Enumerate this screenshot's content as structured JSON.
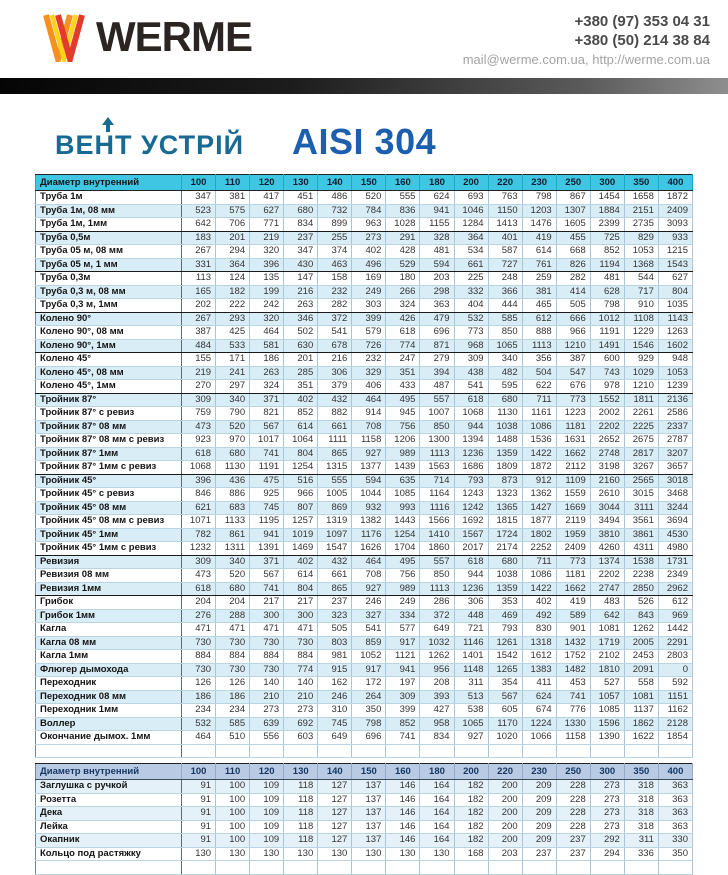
{
  "header": {
    "logo_text": "WERME",
    "phone1": "+380 (97) 353 04 31",
    "phone2": "+380 (50) 214 38 84",
    "contacts": "mail@werme.com.ua, http://werme.com.ua",
    "brand": "ВЕНТ УСТРІЙ",
    "material": "AISI 304",
    "colors": {
      "table1_header_bg": "#3fc6e3",
      "table1_stripe": "#d9edf7",
      "table2_header_bg": "#b9cbe4",
      "brand_color": "#186a93",
      "material_color": "#1b5fae",
      "logo_mark": [
        "#f59120",
        "#fbd31b",
        "#e23b2e"
      ]
    }
  },
  "table1": {
    "header_label": "Диаметр внутренний",
    "columns": [
      "100",
      "110",
      "120",
      "130",
      "140",
      "150",
      "160",
      "180",
      "200",
      "220",
      "230",
      "250",
      "300",
      "350",
      "400"
    ],
    "rows": [
      {
        "label": "Труба 1м",
        "values": [
          347,
          381,
          417,
          451,
          486,
          520,
          555,
          624,
          693,
          763,
          798,
          867,
          1454,
          1658,
          1872
        ],
        "group_end": false
      },
      {
        "label": "Труба 1м, 08 мм",
        "values": [
          523,
          575,
          627,
          680,
          732,
          784,
          836,
          941,
          1046,
          1150,
          1203,
          1307,
          1884,
          2151,
          2409
        ],
        "group_end": false
      },
      {
        "label": "Труба 1м, 1мм",
        "values": [
          642,
          706,
          771,
          834,
          899,
          963,
          1028,
          1155,
          1284,
          1413,
          1476,
          1605,
          2399,
          2735,
          3093
        ],
        "group_end": true
      },
      {
        "label": "Труба 0,5м",
        "values": [
          183,
          201,
          219,
          237,
          255,
          273,
          291,
          328,
          364,
          401,
          419,
          455,
          725,
          829,
          933
        ],
        "group_end": false
      },
      {
        "label": "Труба 05 м, 08 мм",
        "values": [
          267,
          294,
          320,
          347,
          374,
          402,
          428,
          481,
          534,
          587,
          614,
          668,
          852,
          1053,
          1215
        ],
        "group_end": false
      },
      {
        "label": "Труба 05 м, 1 мм",
        "values": [
          331,
          364,
          396,
          430,
          463,
          496,
          529,
          594,
          661,
          727,
          761,
          826,
          1194,
          1368,
          1543
        ],
        "group_end": true
      },
      {
        "label": "Труба 0,3м",
        "values": [
          113,
          124,
          135,
          147,
          158,
          169,
          180,
          203,
          225,
          248,
          259,
          282,
          481,
          544,
          627
        ],
        "group_end": false
      },
      {
        "label": "Труба 0,3 м, 08 мм",
        "values": [
          165,
          182,
          199,
          216,
          232,
          249,
          266,
          298,
          332,
          366,
          381,
          414,
          628,
          717,
          804
        ],
        "group_end": false
      },
      {
        "label": "Труба 0,3 м, 1мм",
        "values": [
          202,
          222,
          242,
          263,
          282,
          303,
          324,
          363,
          404,
          444,
          465,
          505,
          798,
          910,
          1035
        ],
        "group_end": true
      },
      {
        "label": "Колено 90°",
        "values": [
          267,
          293,
          320,
          346,
          372,
          399,
          426,
          479,
          532,
          585,
          612,
          666,
          1012,
          1108,
          1143
        ],
        "group_end": false
      },
      {
        "label": "Колено 90°, 08 мм",
        "values": [
          387,
          425,
          464,
          502,
          541,
          579,
          618,
          696,
          773,
          850,
          888,
          966,
          1191,
          1229,
          1263
        ],
        "group_end": false
      },
      {
        "label": "Колено 90°, 1мм",
        "values": [
          484,
          533,
          581,
          630,
          678,
          726,
          774,
          871,
          968,
          1065,
          1113,
          1210,
          1491,
          1546,
          1602
        ],
        "group_end": true
      },
      {
        "label": "Колено 45°",
        "values": [
          155,
          171,
          186,
          201,
          216,
          232,
          247,
          279,
          309,
          340,
          356,
          387,
          600,
          929,
          948
        ],
        "group_end": false
      },
      {
        "label": "Колено 45°, 08 мм",
        "values": [
          219,
          241,
          263,
          285,
          306,
          329,
          351,
          394,
          438,
          482,
          504,
          547,
          743,
          1029,
          1053
        ],
        "group_end": false
      },
      {
        "label": "Колено 45°, 1мм",
        "values": [
          270,
          297,
          324,
          351,
          379,
          406,
          433,
          487,
          541,
          595,
          622,
          676,
          978,
          1210,
          1239
        ],
        "group_end": true
      },
      {
        "label": "Тройник 87°",
        "values": [
          309,
          340,
          371,
          402,
          432,
          464,
          495,
          557,
          618,
          680,
          711,
          773,
          1552,
          1811,
          2136
        ],
        "group_end": false
      },
      {
        "label": "Тройник 87° с ревиз",
        "values": [
          759,
          790,
          821,
          852,
          882,
          914,
          945,
          1007,
          1068,
          1130,
          1161,
          1223,
          2002,
          2261,
          2586
        ],
        "group_end": false
      },
      {
        "label": "Тройник 87° 08 мм",
        "values": [
          473,
          520,
          567,
          614,
          661,
          708,
          756,
          850,
          944,
          1038,
          1086,
          1181,
          2202,
          2225,
          2337
        ],
        "group_end": false
      },
      {
        "label": "Тройник 87° 08 мм с ревиз",
        "values": [
          923,
          970,
          1017,
          1064,
          1111,
          1158,
          1206,
          1300,
          1394,
          1488,
          1536,
          1631,
          2652,
          2675,
          2787
        ],
        "group_end": false
      },
      {
        "label": "Тройник 87° 1мм",
        "values": [
          618,
          680,
          741,
          804,
          865,
          927,
          989,
          1113,
          1236,
          1359,
          1422,
          1662,
          2748,
          2817,
          3207
        ],
        "group_end": false
      },
      {
        "label": "Тройник 87° 1мм с ревиз",
        "values": [
          1068,
          1130,
          1191,
          1254,
          1315,
          1377,
          1439,
          1563,
          1686,
          1809,
          1872,
          2112,
          3198,
          3267,
          3657
        ],
        "group_end": true
      },
      {
        "label": "Тройник 45°",
        "values": [
          396,
          436,
          475,
          516,
          555,
          594,
          635,
          714,
          793,
          873,
          912,
          1109,
          2160,
          2565,
          3018
        ],
        "group_end": false
      },
      {
        "label": "Тройник 45° с ревиз",
        "values": [
          846,
          886,
          925,
          966,
          1005,
          1044,
          1085,
          1164,
          1243,
          1323,
          1362,
          1559,
          2610,
          3015,
          3468
        ],
        "group_end": false
      },
      {
        "label": "Тройник 45° 08 мм",
        "values": [
          621,
          683,
          745,
          807,
          869,
          932,
          993,
          1116,
          1242,
          1365,
          1427,
          1669,
          3044,
          3111,
          3244
        ],
        "group_end": false
      },
      {
        "label": "Тройник 45° 08 мм с ревиз",
        "values": [
          1071,
          1133,
          1195,
          1257,
          1319,
          1382,
          1443,
          1566,
          1692,
          1815,
          1877,
          2119,
          3494,
          3561,
          3694
        ],
        "group_end": false
      },
      {
        "label": "Тройник 45° 1мм",
        "values": [
          782,
          861,
          941,
          1019,
          1097,
          1176,
          1254,
          1410,
          1567,
          1724,
          1802,
          1959,
          3810,
          3861,
          4530
        ],
        "group_end": false
      },
      {
        "label": "Тройник 45° 1мм с ревиз",
        "values": [
          1232,
          1311,
          1391,
          1469,
          1547,
          1626,
          1704,
          1860,
          2017,
          2174,
          2252,
          2409,
          4260,
          4311,
          4980
        ],
        "group_end": true
      },
      {
        "label": "Ревизия",
        "values": [
          309,
          340,
          371,
          402,
          432,
          464,
          495,
          557,
          618,
          680,
          711,
          773,
          1374,
          1538,
          1731
        ],
        "group_end": false
      },
      {
        "label": "Ревизия 08 мм",
        "values": [
          473,
          520,
          567,
          614,
          661,
          708,
          756,
          850,
          944,
          1038,
          1086,
          1181,
          2202,
          2238,
          2349
        ],
        "group_end": false
      },
      {
        "label": "Ревизия 1мм",
        "values": [
          618,
          680,
          741,
          804,
          865,
          927,
          989,
          1113,
          1236,
          1359,
          1422,
          1662,
          2747,
          2850,
          2962
        ],
        "group_end": true
      },
      {
        "label": "Грибок",
        "values": [
          204,
          204,
          217,
          217,
          237,
          246,
          249,
          286,
          306,
          353,
          402,
          419,
          483,
          526,
          612
        ],
        "group_end": false
      },
      {
        "label": "Грибок 1мм",
        "values": [
          276,
          288,
          300,
          300,
          323,
          327,
          334,
          372,
          448,
          469,
          492,
          589,
          642,
          843,
          969
        ],
        "group_end": false
      },
      {
        "label": "Кагла",
        "values": [
          471,
          471,
          471,
          471,
          505,
          541,
          577,
          649,
          721,
          793,
          830,
          901,
          1081,
          1262,
          1442
        ],
        "group_end": false
      },
      {
        "label": "Кагла 08 мм",
        "values": [
          730,
          730,
          730,
          730,
          803,
          859,
          917,
          1032,
          1146,
          1261,
          1318,
          1432,
          1719,
          2005,
          2291
        ],
        "group_end": false
      },
      {
        "label": "Кагла 1мм",
        "values": [
          884,
          884,
          884,
          884,
          981,
          1052,
          1121,
          1262,
          1401,
          1542,
          1612,
          1752,
          2102,
          2453,
          2803
        ],
        "group_end": false
      },
      {
        "label": "Флюгер дымохода",
        "values": [
          730,
          730,
          730,
          774,
          915,
          917,
          941,
          956,
          1148,
          1265,
          1383,
          1482,
          1810,
          2091,
          0
        ],
        "group_end": false
      },
      {
        "label": "Переходник",
        "values": [
          126,
          126,
          140,
          140,
          162,
          172,
          197,
          208,
          311,
          354,
          411,
          453,
          527,
          558,
          592
        ],
        "group_end": false
      },
      {
        "label": "Переходник 08 мм",
        "values": [
          186,
          186,
          210,
          210,
          246,
          264,
          309,
          393,
          513,
          567,
          624,
          741,
          1057,
          1081,
          1151
        ],
        "group_end": false
      },
      {
        "label": "Переходник 1мм",
        "values": [
          234,
          234,
          273,
          273,
          310,
          350,
          399,
          427,
          538,
          605,
          674,
          776,
          1085,
          1137,
          1162
        ],
        "group_end": false
      },
      {
        "label": "Воллер",
        "values": [
          532,
          585,
          639,
          692,
          745,
          798,
          852,
          958,
          1065,
          1170,
          1224,
          1330,
          1596,
          1862,
          2128
        ],
        "group_end": false
      },
      {
        "label": "Окончание дымох. 1мм",
        "values": [
          464,
          510,
          556,
          603,
          649,
          696,
          741,
          834,
          927,
          1020,
          1066,
          1158,
          1390,
          1622,
          1854
        ],
        "group_end": false
      }
    ]
  },
  "table2": {
    "header_label": "Диаметр внутренний",
    "columns": [
      "100",
      "110",
      "120",
      "130",
      "140",
      "150",
      "160",
      "180",
      "200",
      "220",
      "230",
      "250",
      "300",
      "350",
      "400"
    ],
    "rows": [
      {
        "label": "Заглушка с ручкой",
        "values": [
          91,
          100,
          109,
          118,
          127,
          137,
          146,
          164,
          182,
          200,
          209,
          228,
          273,
          318,
          363
        ],
        "group_end": false
      },
      {
        "label": "Розетта",
        "values": [
          91,
          100,
          109,
          118,
          127,
          137,
          146,
          164,
          182,
          200,
          209,
          228,
          273,
          318,
          363
        ],
        "group_end": false
      },
      {
        "label": "Дека",
        "values": [
          91,
          100,
          109,
          118,
          127,
          137,
          146,
          164,
          182,
          200,
          209,
          228,
          273,
          318,
          363
        ],
        "group_end": false
      },
      {
        "label": "Лейка",
        "values": [
          91,
          100,
          109,
          118,
          127,
          137,
          146,
          164,
          182,
          200,
          209,
          228,
          273,
          318,
          363
        ],
        "group_end": false
      },
      {
        "label": "Окапник",
        "values": [
          91,
          100,
          109,
          118,
          127,
          137,
          146,
          164,
          182,
          200,
          209,
          237,
          292,
          311,
          330
        ],
        "group_end": false
      },
      {
        "label": "Кольцо под растяжку",
        "values": [
          130,
          130,
          130,
          130,
          130,
          130,
          130,
          130,
          168,
          203,
          237,
          237,
          294,
          336,
          350
        ],
        "group_end": false
      }
    ]
  }
}
